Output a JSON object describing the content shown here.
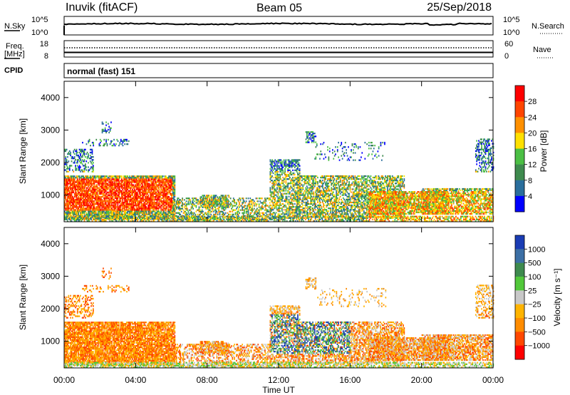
{
  "header": {
    "title": "Inuvik (fitACF)",
    "beam": "Beam 05",
    "date": "25/Sep/2018"
  },
  "top_panels": {
    "nsky_label": "N.Sky",
    "nsearch_label": "N.Search",
    "noise_ticks": [
      "10^5",
      "10^0"
    ],
    "freq_label_line1": "Freq.",
    "freq_label_line2": "[MHz]",
    "freq_ticks": [
      "18",
      "8"
    ],
    "nave_label": "Nave",
    "nave_ticks": [
      "60",
      "0"
    ],
    "cpid_label": "CPID",
    "cpid_text": "normal (fast) 151"
  },
  "x_axis": {
    "label": "Time UT",
    "ticks": [
      "00:00",
      "04:00",
      "08:00",
      "12:00",
      "16:00",
      "20:00",
      "00:00"
    ]
  },
  "colors": {
    "power": [
      "#0000ff",
      "#2a6e9c",
      "#3e8a4e",
      "#4bbf44",
      "#ffe000",
      "#ff9000",
      "#ff4500",
      "#ff0000"
    ],
    "velocity": [
      "#1a3cb4",
      "#3c6fa5",
      "#3e8a4e",
      "#52c83a",
      "#c8c8c8",
      "#ffb400",
      "#ff8c00",
      "#ff4800",
      "#ff0000"
    ]
  },
  "chart_data": [
    {
      "type": "heatmap",
      "panel": "power",
      "xlabel": "Time UT",
      "ylabel": "Slant Range [km]",
      "xlim": [
        0,
        24
      ],
      "ylim": [
        180,
        4500
      ],
      "yticks": [
        "1000",
        "2000",
        "3000",
        "4000"
      ],
      "colorbar": {
        "label": "Power [dB]",
        "range": [
          0,
          32
        ],
        "ticks": [
          "4",
          "8",
          "12",
          "16",
          "20",
          "24",
          "28"
        ]
      }
    },
    {
      "type": "heatmap",
      "panel": "velocity",
      "xlabel": "Time UT",
      "ylabel": "Slant Range [km]",
      "xlim": [
        0,
        24
      ],
      "ylim": [
        180,
        4500
      ],
      "yticks": [
        "1000",
        "2000",
        "3000",
        "4000"
      ],
      "colorbar": {
        "label": "Velocity [m s⁻¹]",
        "ticks": [
          "1000",
          "500",
          "100",
          "25",
          "−25",
          "−100",
          "−500",
          "−1000"
        ]
      }
    }
  ]
}
